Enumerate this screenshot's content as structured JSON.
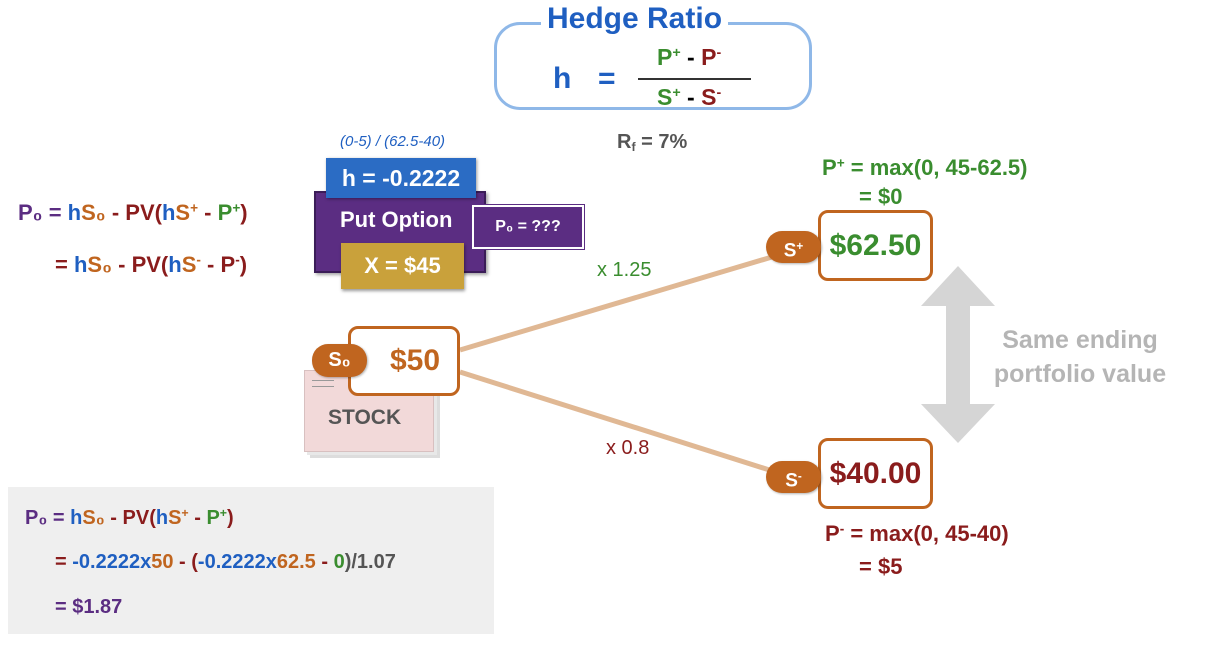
{
  "hedge_ratio": {
    "title": "Hedge Ratio",
    "h": "h",
    "eq": "=",
    "num_p_plus": "P",
    "num_p_plus_sup": "+",
    "num_minus": " - ",
    "num_p_minus": "P",
    "num_p_minus_sup": "-",
    "den_s_plus": "S",
    "den_s_plus_sup": "+",
    "den_minus": " - ",
    "den_s_minus": "S",
    "den_s_minus_sup": "-"
  },
  "rf": {
    "r": "R",
    "sub": "f",
    "value": " = 7%"
  },
  "hedge_calc_note": "(0-5) / (62.5-40)",
  "h_value": "h = -0.2222",
  "put_option": {
    "label": "Put Option",
    "strike": "X = $45",
    "price": "P₀ = ???"
  },
  "formula_left": {
    "line1": {
      "p0": "P₀",
      "eq": " = ",
      "h": "h",
      "s0": "S₀",
      "pv": " - PV(",
      "h2": "h",
      "s": "S",
      "sup": "+",
      "m": " - ",
      "p": "P",
      "psup": "+",
      "close": ")"
    },
    "line2": {
      "eq": "= ",
      "h": "h",
      "s0": "S₀",
      "pv": " - PV(",
      "h2": "h",
      "s": "S",
      "sup": "-",
      "m": " - ",
      "p": "P",
      "psup": "-",
      "close": ")"
    }
  },
  "stock": {
    "tag": "S₀",
    "price": "$50",
    "label": "STOCK"
  },
  "up": {
    "tag_s": "S",
    "tag_sup": "+",
    "price": "$62.50",
    "multiplier": "x 1.25",
    "payoff_line1": {
      "p": "P",
      "sup": "+",
      "text": " = max(0, 45-62.5)"
    },
    "payoff_line2": "= $0"
  },
  "down": {
    "tag_s": "S",
    "tag_sup": "-",
    "price": "$40.00",
    "multiplier": "x 0.8",
    "payoff_line1": {
      "p": "P",
      "sup": "-",
      "text": " = max(0, 45-40)"
    },
    "payoff_line2": "= $5"
  },
  "same_value_note": {
    "line1": "Same ending",
    "line2": "portfolio value"
  },
  "calc": {
    "line1": {
      "p0": "P₀",
      "eq": " = ",
      "h": "h",
      "s0": "S₀",
      "pv": " - PV(",
      "h2": "h",
      "s": "S",
      "sup": "+",
      "m": " - ",
      "p": "P",
      "psup": "+",
      "close": ")"
    },
    "line2": {
      "eq": "= ",
      "a": "-0.2222x",
      "b": "50",
      "c": " - (",
      "d": "-0.2222x",
      "e": "62.5",
      "f": " - ",
      "g": "0",
      "h": ")/1.07"
    },
    "line3": "= $1.87"
  },
  "colors": {
    "purple": "#5b2d82",
    "blue": "#1f5fc1",
    "orange": "#c0651f",
    "dark_red": "#8a1c1c",
    "green": "#3a8d2f",
    "branch": "#e0b894",
    "arrow": "#d5d5d5"
  }
}
